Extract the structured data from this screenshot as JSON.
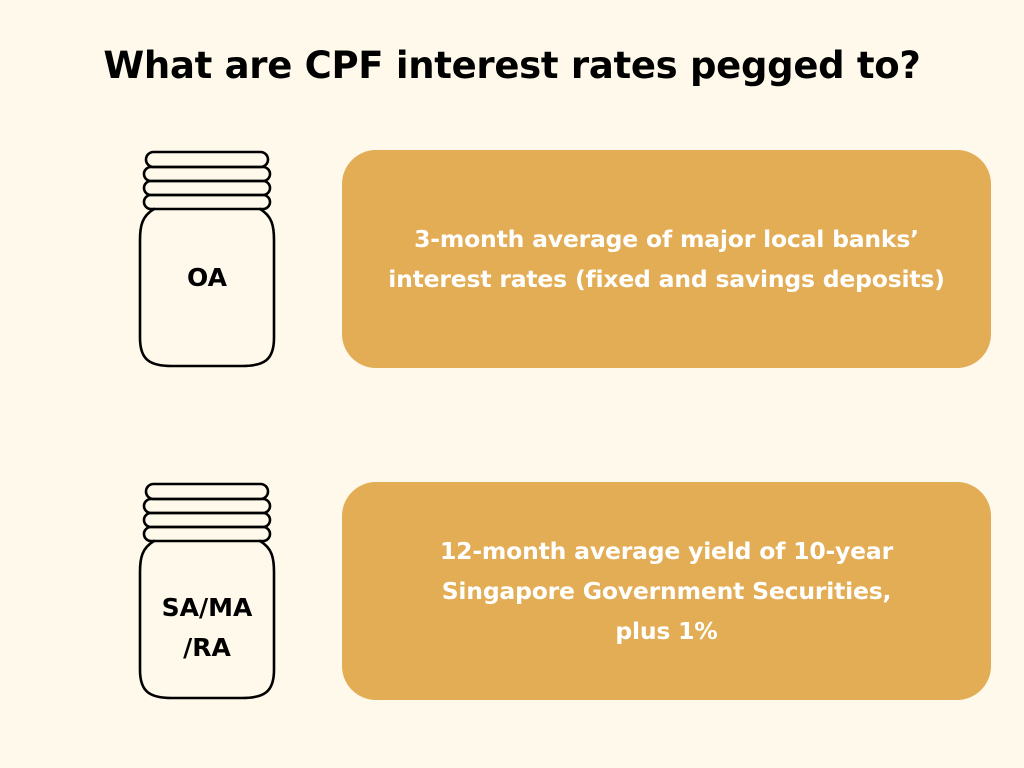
{
  "title": "What are CPF interest rates pegged to?",
  "colors": {
    "background": "#fef9ea",
    "card": "#e3ad55",
    "card_text": "#ffffff",
    "jar_outline": "#000000"
  },
  "rows": [
    {
      "jar_icon": "jar-icon",
      "jar_label_lines": [
        "OA"
      ],
      "description_lines": [
        "3-month average of major local banks’",
        "interest rates (fixed and savings deposits)"
      ]
    },
    {
      "jar_icon": "jar-icon",
      "jar_label_lines": [
        "SA/MA",
        "/RA"
      ],
      "description_lines": [
        "12-month average yield of 10-year",
        "Singapore Government Securities,",
        "plus 1%"
      ]
    }
  ]
}
